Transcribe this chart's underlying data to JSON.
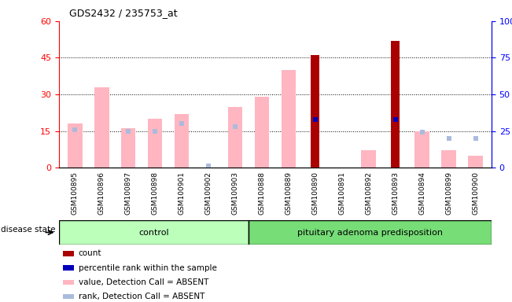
{
  "title": "GDS2432 / 235753_at",
  "samples": [
    "GSM100895",
    "GSM100896",
    "GSM100897",
    "GSM100898",
    "GSM100901",
    "GSM100902",
    "GSM100903",
    "GSM100888",
    "GSM100889",
    "GSM100890",
    "GSM100891",
    "GSM100892",
    "GSM100893",
    "GSM100894",
    "GSM100899",
    "GSM100900"
  ],
  "value_absent": [
    18,
    33,
    16,
    20,
    22,
    0,
    25,
    29,
    40,
    0,
    0,
    7,
    0,
    15,
    7,
    5
  ],
  "rank_absent": [
    26,
    0,
    25,
    25,
    30,
    1,
    28,
    0,
    0,
    0,
    0,
    0,
    0,
    24,
    20,
    20
  ],
  "count": [
    0,
    0,
    0,
    0,
    0,
    0,
    0,
    0,
    0,
    46,
    0,
    0,
    52,
    0,
    0,
    0
  ],
  "percentile": [
    0,
    0,
    0,
    0,
    0,
    0,
    0,
    0,
    0,
    33,
    0,
    0,
    33,
    0,
    0,
    0
  ],
  "ylim_left": [
    0,
    60
  ],
  "ylim_right": [
    0,
    100
  ],
  "yticks_left": [
    0,
    15,
    30,
    45,
    60
  ],
  "yticks_right": [
    0,
    25,
    50,
    75,
    100
  ],
  "control_count": 7,
  "value_absent_color": "#FFB6C1",
  "rank_absent_color": "#AABBDD",
  "count_color": "#AA0000",
  "percentile_color": "#0000BB",
  "ctrl_color": "#BBFFBB",
  "pit_color": "#77DD77",
  "tick_bg_color": "#CCCCCC",
  "legend_items": [
    [
      "#AA0000",
      "count"
    ],
    [
      "#0000BB",
      "percentile rank within the sample"
    ],
    [
      "#FFB6C1",
      "value, Detection Call = ABSENT"
    ],
    [
      "#AABBDD",
      "rank, Detection Call = ABSENT"
    ]
  ]
}
